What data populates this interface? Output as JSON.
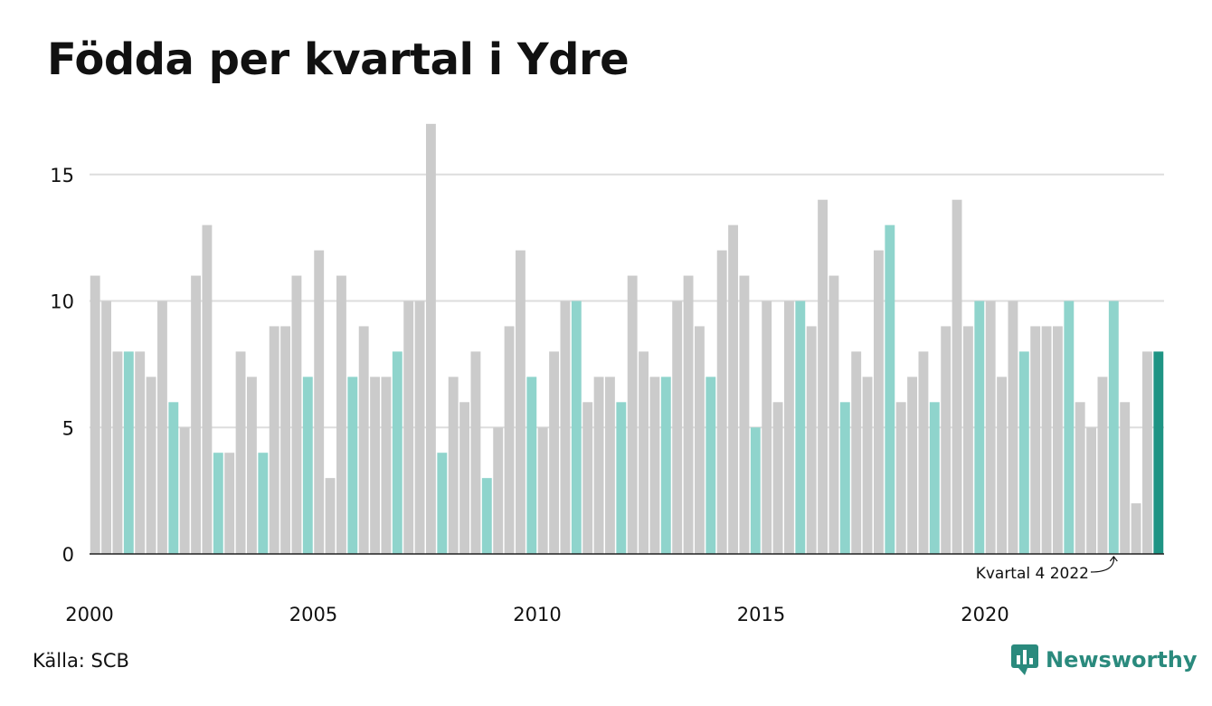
{
  "title": "Födda per kvartal i Ydre",
  "source": "Källa: SCB",
  "brand": {
    "name": "Newsworthy",
    "icon": "newsworthy-logo-icon"
  },
  "colors": {
    "default": "#cbcbcb",
    "q4": "#8fd4cc",
    "highlight": "#1f9484",
    "grid": "#dddddd",
    "axis": "#222222"
  },
  "chart_data": {
    "type": "bar",
    "title": "Födda per kvartal i Ydre",
    "xlabel": "",
    "ylabel": "",
    "ylim": [
      0,
      17
    ],
    "yticks": [
      0,
      5,
      10,
      15
    ],
    "xticks": [
      "2000",
      "2005",
      "2010",
      "2015",
      "2020"
    ],
    "start_year": 2000,
    "grid": true,
    "annotation": {
      "text": "Kvartal 4 2022",
      "year": 2022,
      "quarter": 4
    },
    "values": [
      11,
      10,
      8,
      8,
      8,
      7,
      10,
      6,
      5,
      11,
      13,
      4,
      4,
      8,
      7,
      4,
      9,
      9,
      11,
      7,
      12,
      3,
      11,
      7,
      9,
      7,
      7,
      8,
      10,
      10,
      17,
      4,
      7,
      6,
      8,
      3,
      5,
      9,
      12,
      7,
      5,
      8,
      10,
      10,
      6,
      7,
      7,
      6,
      11,
      8,
      7,
      7,
      10,
      11,
      9,
      7,
      12,
      13,
      11,
      5,
      10,
      6,
      10,
      10,
      9,
      14,
      11,
      6,
      8,
      7,
      12,
      13,
      6,
      7,
      8,
      6,
      9,
      14,
      9,
      10,
      10,
      7,
      10,
      8,
      9,
      9,
      9,
      10,
      6,
      5,
      7,
      10,
      6,
      2,
      8,
      8
    ]
  }
}
